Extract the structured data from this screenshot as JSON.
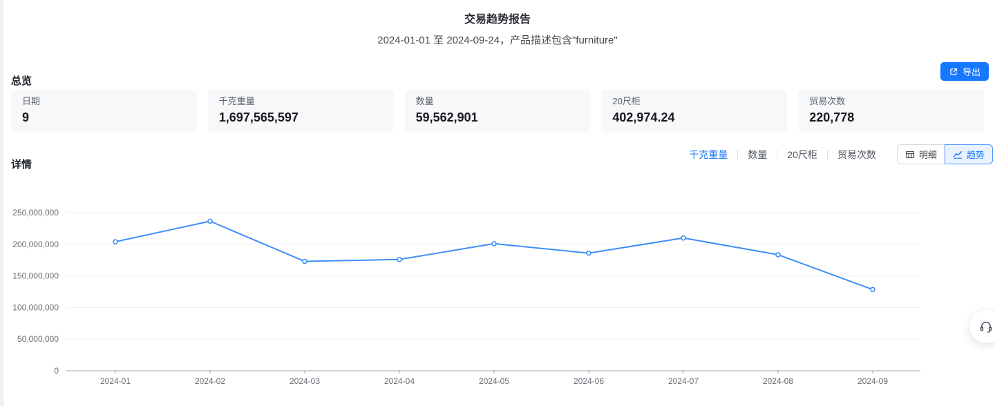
{
  "header": {
    "title": "交易趋势报告",
    "subtitle": "2024-01-01 至 2024-09-24，产品描述包含\"furniture\""
  },
  "overview": {
    "section_title": "总览",
    "export_label": "导出",
    "export_icon": "export-icon",
    "cards": [
      {
        "label": "日期",
        "value": "9"
      },
      {
        "label": "千克重量",
        "value": "1,697,565,597"
      },
      {
        "label": "数量",
        "value": "59,562,901"
      },
      {
        "label": "20尺柜",
        "value": "402,974.24"
      },
      {
        "label": "贸易次数",
        "value": "220,778"
      }
    ]
  },
  "detail": {
    "section_title": "详情",
    "metric_tabs": [
      {
        "label": "千克重量",
        "active": true
      },
      {
        "label": "数量",
        "active": false
      },
      {
        "label": "20尺柜",
        "active": false
      },
      {
        "label": "贸易次数",
        "active": false
      }
    ],
    "view_toggle": [
      {
        "label": "明细",
        "icon": "table-icon",
        "active": false
      },
      {
        "label": "趋势",
        "icon": "trend-icon",
        "active": true
      }
    ]
  },
  "floating_button": {
    "icon": "headset-icon"
  },
  "colors": {
    "accent": "#1677ff",
    "line": "#3e8ef6",
    "active_toggle_bg": "#e8f3ff",
    "card_bg": "#f7f8fa",
    "gridline": "#edeff2",
    "axis": "#9aa0a8",
    "axis_label": "#666b73"
  },
  "chart_data": {
    "type": "line",
    "title": "",
    "xlabel": "",
    "ylabel": "",
    "categories": [
      "2024-01",
      "2024-02",
      "2024-03",
      "2024-04",
      "2024-05",
      "2024-06",
      "2024-07",
      "2024-08",
      "2024-09"
    ],
    "series": [
      {
        "name": "千克重量",
        "values": [
          204000000,
          236500000,
          173000000,
          176000000,
          201000000,
          186000000,
          210000000,
          183500000,
          128500000
        ]
      }
    ],
    "ylim": [
      0,
      250000000
    ],
    "ytick_interval": 50000000,
    "ytick_labels": [
      "0",
      "50,000,000",
      "100,000,000",
      "150,000,000",
      "200,000,000",
      "250,000,000"
    ],
    "grid": "horizontal",
    "legend": "none",
    "line_color": "#3e8ef6",
    "point_style": "hollow-circle"
  }
}
